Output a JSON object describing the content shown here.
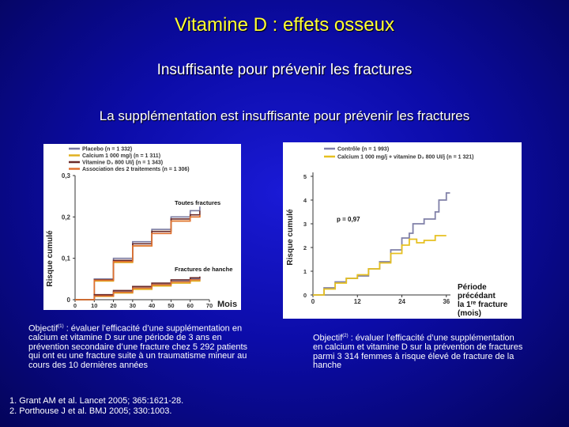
{
  "slide": {
    "title": "Vitamine D : effets osseux",
    "subtitle1": "Insuffisante pour prévenir les fractures",
    "subtitle2": "La supplémentation est insuffisante pour prévenir les fractures"
  },
  "colors": {
    "title": "#ffff33",
    "placebo": "#7a7aa0",
    "calcium": "#e0b020",
    "vitd": "#6a2a2a",
    "assoc": "#e07030",
    "control": "#8080a8",
    "combo": "#e6c020"
  },
  "chart_data": [
    {
      "type": "line",
      "ylabel": "Risque cumulé",
      "xlabel": "Mois",
      "ylim": [
        0,
        0.3
      ],
      "xlim": [
        0,
        70
      ],
      "y_ticks": [
        "0",
        "0,1",
        "0,2",
        "0,3"
      ],
      "x_ticks": [
        "0",
        "10",
        "20",
        "30",
        "40",
        "50",
        "60",
        "70"
      ],
      "legend": [
        "Placebo (n = 1 332)",
        "Calcium 1 000 mg/j (n = 1 311)",
        "Vitamine D₃ 800 UI/j (n = 1 343)",
        "Association des 2 traitements (n = 1 306)"
      ],
      "annotations": [
        "Toutes fractures",
        "Fractures de hanche"
      ],
      "series": [
        {
          "name": "Placebo (n = 1 332)",
          "group": "all",
          "x": [
            0,
            10,
            20,
            30,
            40,
            50,
            60,
            65
          ],
          "y": [
            0,
            0.05,
            0.1,
            0.14,
            0.17,
            0.2,
            0.215,
            0.225
          ]
        },
        {
          "name": "Calcium 1 000 mg/j (n = 1 311)",
          "group": "all",
          "x": [
            0,
            10,
            20,
            30,
            40,
            50,
            60,
            65
          ],
          "y": [
            0,
            0.045,
            0.09,
            0.13,
            0.165,
            0.19,
            0.2,
            0.205
          ]
        },
        {
          "name": "Vitamine D₃ 800 UI/j (n = 1 343)",
          "group": "all",
          "x": [
            0,
            10,
            20,
            30,
            40,
            50,
            60,
            65
          ],
          "y": [
            0,
            0.048,
            0.095,
            0.135,
            0.165,
            0.195,
            0.205,
            0.215
          ]
        },
        {
          "name": "Association des 2 traitements (n = 1 306)",
          "group": "all",
          "x": [
            0,
            10,
            20,
            30,
            40,
            50,
            60,
            65
          ],
          "y": [
            0,
            0.047,
            0.092,
            0.13,
            0.16,
            0.19,
            0.2,
            0.205
          ]
        },
        {
          "name": "Placebo (n = 1 332)",
          "group": "hip",
          "x": [
            0,
            10,
            20,
            30,
            40,
            50,
            60,
            65
          ],
          "y": [
            0,
            0.01,
            0.02,
            0.03,
            0.037,
            0.045,
            0.05,
            0.052
          ]
        },
        {
          "name": "Calcium 1 000 mg/j (n = 1 311)",
          "group": "hip",
          "x": [
            0,
            10,
            20,
            30,
            40,
            50,
            60,
            65
          ],
          "y": [
            0,
            0.008,
            0.016,
            0.025,
            0.033,
            0.04,
            0.045,
            0.047
          ]
        },
        {
          "name": "Vitamine D₃ 800 UI/j (n = 1 343)",
          "group": "hip",
          "x": [
            0,
            10,
            20,
            30,
            40,
            50,
            60,
            65
          ],
          "y": [
            0,
            0.012,
            0.022,
            0.032,
            0.04,
            0.048,
            0.053,
            0.056
          ]
        },
        {
          "name": "Association des 2 traitements (n = 1 306)",
          "group": "hip",
          "x": [
            0,
            10,
            20,
            30,
            40,
            50,
            60,
            65
          ],
          "y": [
            0,
            0.009,
            0.018,
            0.028,
            0.036,
            0.043,
            0.048,
            0.05
          ]
        }
      ]
    },
    {
      "type": "line",
      "ylabel": "Risque cumulé",
      "xlabel": "Période précédant la 1re fracture (mois)",
      "ylim": [
        0,
        5
      ],
      "xlim": [
        0,
        36
      ],
      "y_ticks": [
        "0",
        "1",
        "2",
        "3",
        "4",
        "5"
      ],
      "x_ticks": [
        "0",
        "12",
        "24",
        "36"
      ],
      "legend": [
        "Contrôle (n = 1 993)",
        "Calcium 1 000 mg/j + vitamine D₃ 800 UI/j (n = 1 321)"
      ],
      "annotations": [
        "p = 0,97"
      ],
      "series": [
        {
          "name": "Contrôle (n = 1 993)",
          "x": [
            0,
            3,
            6,
            9,
            12,
            15,
            18,
            21,
            24,
            26,
            27,
            30,
            33,
            34,
            34,
            36,
            36,
            37
          ],
          "y": [
            0,
            0.3,
            0.55,
            0.7,
            0.8,
            1.1,
            1.4,
            1.9,
            2.4,
            2.6,
            3.0,
            3.2,
            3.5,
            3.5,
            4.0,
            4.0,
            4.3,
            4.3
          ]
        },
        {
          "name": "Calcium 1 000 mg/j + vitamine D₃ 800 UI/j (n = 1 321)",
          "x": [
            0,
            3,
            6,
            9,
            12,
            15,
            18,
            21,
            24,
            26,
            28,
            30,
            33,
            36
          ],
          "y": [
            0,
            0.25,
            0.5,
            0.7,
            0.85,
            1.1,
            1.35,
            1.75,
            2.1,
            2.35,
            2.2,
            2.3,
            2.5,
            2.5
          ]
        }
      ]
    }
  ],
  "notes": {
    "left_label": "Objectif",
    "left_sup": "(1)",
    "left_text": " : évaluer l’efficacité d’une supplémentation en calcium et vitamine D sur une période de 3 ans en prévention secondaire d’une fracture chez  5 292 patients qui ont eu une fracture suite à un traumatisme mineur au cours des 10 dernières années",
    "right_label": "Objectif",
    "right_sup": "(2)",
    "right_text": " : évaluer l’efficacité d’une supplémentation en calcium et vitamine D sur la prévention de fractures parmi 3 314 femmes à risque élevé de fracture de la hanche"
  },
  "references": [
    "1. Grant AM et al. Lancet 2005; 365:1621-28.",
    "2. Porthouse J et al. BMJ 2005; 330:1003."
  ]
}
